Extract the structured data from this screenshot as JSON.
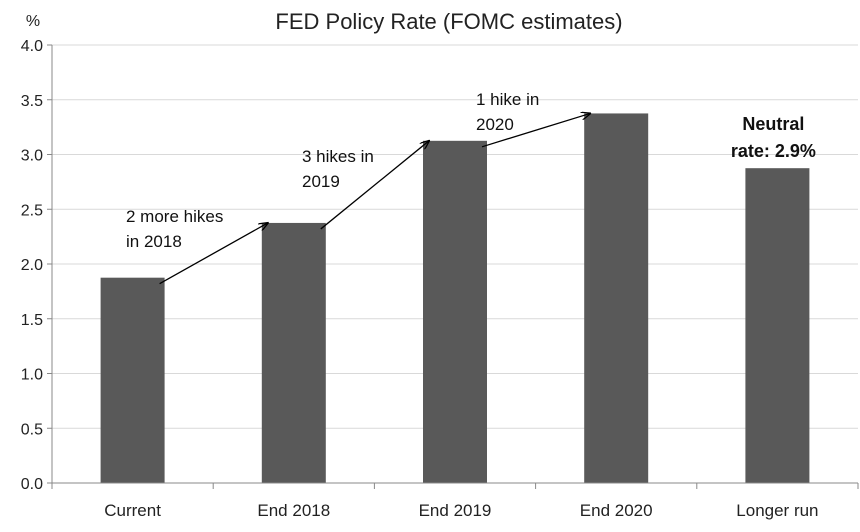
{
  "chart_data": {
    "type": "bar",
    "title": "FED Policy Rate (FOMC estimates)",
    "ylabel": "%",
    "xlabel": "",
    "categories": [
      "Current",
      "End 2018",
      "End 2019",
      "End 2020",
      "Longer run"
    ],
    "values": [
      1.875,
      2.375,
      3.125,
      3.375,
      2.875
    ],
    "ylim": [
      0,
      4.0
    ],
    "yticks": [
      "0.0",
      "0.5",
      "1.0",
      "1.5",
      "2.0",
      "2.5",
      "3.0",
      "3.5",
      "4.0"
    ],
    "grid": true,
    "bar_color": "#595959",
    "annotations": [
      {
        "lines": [
          "2 more hikes",
          "in 2018"
        ],
        "from_category": "Current",
        "to_category": "End 2018"
      },
      {
        "lines": [
          "3 hikes in",
          "2019"
        ],
        "from_category": "End 2018",
        "to_category": "End 2019"
      },
      {
        "lines": [
          "1 hike in",
          "2020"
        ],
        "from_category": "End 2019",
        "to_category": "End 2020"
      }
    ],
    "callout": {
      "lines": [
        "Neutral",
        "rate: 2.9%"
      ],
      "category": "Longer run"
    }
  }
}
